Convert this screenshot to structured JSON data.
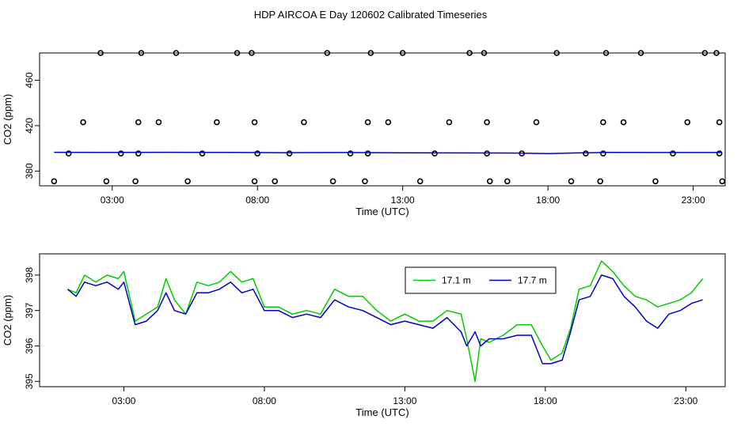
{
  "title": "HDP AIRCOA E  Day 120602  Calibrated Timeseries",
  "colors": {
    "green": "#00cc00",
    "blue": "#0000cc",
    "black": "#000000"
  },
  "chart_data": [
    {
      "type": "scatter",
      "xlabel": "Time (UTC)",
      "ylabel": "CO2 (ppm)",
      "xlim": [
        0.5,
        24.1
      ],
      "ylim": [
        367,
        484
      ],
      "x_ticks": [
        3,
        8,
        13,
        18,
        23
      ],
      "x_tick_labels": [
        "03:00",
        "08:00",
        "13:00",
        "18:00",
        "23:00"
      ],
      "y_ticks": [
        380,
        420,
        460
      ],
      "y_tick_labels": [
        "380",
        "420",
        "460"
      ],
      "grid": false,
      "series": [
        {
          "style": "points",
          "points": [
            [
              1.5,
              395.5
            ],
            [
              1.0,
              371
            ],
            [
              2.0,
              423
            ],
            [
              2.6,
              484
            ],
            [
              2.8,
              371
            ],
            [
              3.3,
              395.5
            ],
            [
              3.8,
              371
            ],
            [
              3.9,
              395.5
            ],
            [
              3.9,
              423
            ],
            [
              4.0,
              484
            ],
            [
              4.6,
              423
            ],
            [
              5.2,
              484
            ],
            [
              5.6,
              371
            ],
            [
              6.1,
              395.5
            ],
            [
              6.6,
              423
            ],
            [
              7.3,
              484
            ],
            [
              7.8,
              484
            ],
            [
              7.9,
              423
            ],
            [
              7.9,
              371
            ],
            [
              8.0,
              395.5
            ],
            [
              8.6,
              371
            ],
            [
              9.1,
              395.5
            ],
            [
              9.6,
              423
            ],
            [
              10.4,
              484
            ],
            [
              10.6,
              371
            ],
            [
              11.2,
              395.5
            ],
            [
              11.7,
              371
            ],
            [
              11.8,
              395.5
            ],
            [
              11.8,
              423
            ],
            [
              11.9,
              484
            ],
            [
              12.5,
              423
            ],
            [
              13.0,
              484
            ],
            [
              13.6,
              371
            ],
            [
              14.1,
              395.5
            ],
            [
              14.6,
              423
            ],
            [
              15.3,
              484
            ],
            [
              15.8,
              484
            ],
            [
              15.9,
              423
            ],
            [
              15.9,
              395.5
            ],
            [
              16.0,
              371
            ],
            [
              16.6,
              371
            ],
            [
              17.1,
              395.5
            ],
            [
              17.6,
              423
            ],
            [
              18.3,
              484
            ],
            [
              18.8,
              371
            ],
            [
              19.3,
              395.5
            ],
            [
              19.8,
              371
            ],
            [
              19.9,
              395.5
            ],
            [
              19.9,
              423
            ],
            [
              20.0,
              484
            ],
            [
              20.6,
              423
            ],
            [
              21.2,
              484
            ],
            [
              21.7,
              371
            ],
            [
              22.3,
              395.5
            ],
            [
              22.8,
              423
            ],
            [
              23.4,
              484
            ],
            [
              23.8,
              484
            ],
            [
              23.9,
              423
            ],
            [
              23.9,
              395.5
            ],
            [
              24.0,
              371
            ]
          ]
        },
        {
          "style": "line",
          "x": [
            1.0,
            3.0,
            5.0,
            7.0,
            9.0,
            11.0,
            13.0,
            15.0,
            17.0,
            18.0,
            19.0,
            20.0,
            22.0,
            24.0
          ],
          "y": [
            396.5,
            396.4,
            396.5,
            396.4,
            396.2,
            396.3,
            396.1,
            396.0,
            395.8,
            395.4,
            396.0,
            396.4,
            396.3,
            396.3
          ]
        }
      ]
    },
    {
      "type": "line",
      "xlabel": "Time (UTC)",
      "ylabel": "CO2 (ppm)",
      "xlim": [
        0.0,
        24.4
      ],
      "ylim": [
        394.85,
        398.6
      ],
      "x_ticks": [
        3,
        8,
        13,
        18,
        23
      ],
      "x_tick_labels": [
        "03:00",
        "08:00",
        "13:00",
        "18:00",
        "23:00"
      ],
      "y_ticks": [
        395,
        396,
        397,
        398
      ],
      "y_tick_labels": [
        "395",
        "396",
        "397",
        "398"
      ],
      "grid": false,
      "legend": {
        "placement": "top-right"
      },
      "series": [
        {
          "name": "17.1 m",
          "color": "#00cc00",
          "x": [
            1.0,
            1.3,
            1.6,
            2.0,
            2.4,
            2.8,
            3.0,
            3.4,
            3.8,
            4.2,
            4.5,
            4.8,
            5.2,
            5.6,
            6.0,
            6.4,
            6.8,
            7.2,
            7.6,
            8.0,
            8.5,
            9.0,
            9.5,
            10.0,
            10.5,
            11.0,
            11.5,
            12.0,
            12.5,
            13.0,
            13.5,
            14.0,
            14.5,
            15.0,
            15.2,
            15.5,
            15.7,
            16.0,
            16.5,
            17.0,
            17.5,
            17.9,
            18.2,
            18.6,
            18.9,
            19.2,
            19.6,
            20.0,
            20.4,
            20.8,
            21.2,
            21.6,
            22.0,
            22.4,
            22.8,
            23.2,
            23.6
          ],
          "y": [
            397.6,
            397.5,
            398.0,
            397.8,
            398.0,
            397.9,
            398.1,
            396.7,
            396.9,
            397.1,
            397.9,
            397.3,
            396.9,
            397.8,
            397.7,
            397.8,
            398.1,
            397.8,
            397.9,
            397.1,
            397.1,
            396.9,
            397.0,
            396.9,
            397.6,
            397.4,
            397.4,
            397.0,
            396.7,
            396.9,
            396.7,
            396.7,
            397.0,
            396.9,
            396.2,
            395.0,
            396.2,
            396.1,
            396.3,
            396.6,
            396.6,
            396.0,
            395.6,
            395.8,
            396.5,
            397.6,
            397.7,
            398.4,
            398.1,
            397.7,
            397.4,
            397.3,
            397.1,
            397.2,
            397.3,
            397.5,
            397.9
          ]
        },
        {
          "name": "17.7 m",
          "color": "#0000cc",
          "x": [
            1.0,
            1.3,
            1.6,
            2.0,
            2.4,
            2.8,
            3.0,
            3.4,
            3.8,
            4.2,
            4.5,
            4.8,
            5.2,
            5.6,
            6.0,
            6.4,
            6.8,
            7.2,
            7.6,
            8.0,
            8.5,
            9.0,
            9.5,
            10.0,
            10.5,
            11.0,
            11.5,
            12.0,
            12.5,
            13.0,
            13.5,
            14.0,
            14.5,
            15.0,
            15.2,
            15.5,
            15.7,
            16.0,
            16.5,
            17.0,
            17.5,
            17.9,
            18.2,
            18.6,
            18.9,
            19.2,
            19.6,
            20.0,
            20.4,
            20.8,
            21.2,
            21.6,
            22.0,
            22.4,
            22.8,
            23.2,
            23.6
          ],
          "y": [
            397.6,
            397.4,
            397.8,
            397.7,
            397.8,
            397.6,
            397.8,
            396.6,
            396.7,
            397.0,
            397.5,
            397.0,
            396.9,
            397.5,
            397.5,
            397.6,
            397.8,
            397.5,
            397.6,
            397.0,
            397.0,
            396.8,
            396.9,
            396.8,
            397.3,
            397.1,
            397.0,
            396.8,
            396.6,
            396.7,
            396.6,
            396.5,
            396.8,
            396.4,
            396.0,
            396.4,
            396.0,
            396.2,
            396.2,
            396.3,
            396.3,
            395.5,
            395.5,
            395.6,
            396.4,
            397.3,
            397.4,
            398.0,
            397.9,
            397.4,
            397.1,
            396.7,
            396.5,
            396.9,
            397.0,
            397.2,
            397.3
          ]
        }
      ]
    }
  ]
}
